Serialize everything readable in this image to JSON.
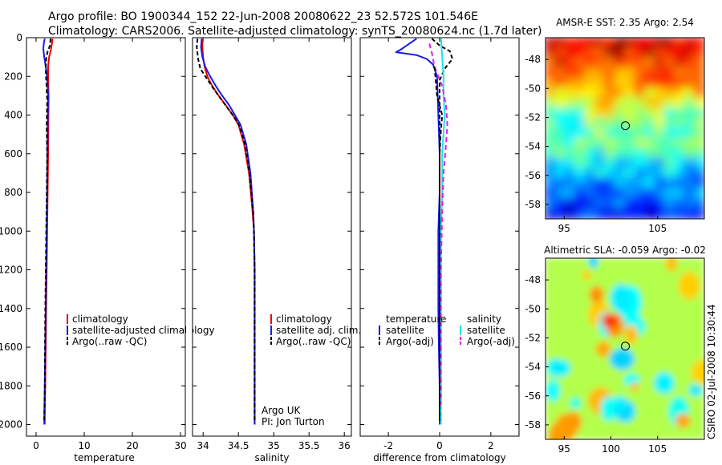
{
  "header": {
    "line1": "Argo profile: BO 1900344_152 22-Jun-2008 20080622_23 52.572S 101.546E",
    "line2": "Climatology: CARS2006. Satellite-adjusted climatology: synTS_20080624.nc (1.7d later)"
  },
  "side_text": "CSIRO 02-Jul-2008 10:30:44",
  "colors": {
    "red": "#ee0000",
    "blue": "#1a1ae6",
    "black": "#000000",
    "cyan": "#19e6e6",
    "magenta": "#e619e6"
  },
  "chart_data": [
    {
      "type": "line",
      "panel": "temperature",
      "xlabel": "temperature",
      "xlim": [
        -2,
        31
      ],
      "ylim": [
        2060,
        0
      ],
      "xticks": [
        0,
        10,
        20,
        30
      ],
      "yticks": [
        0,
        200,
        400,
        600,
        800,
        1000,
        1200,
        1400,
        1600,
        1800,
        2000
      ],
      "legend": {
        "placement": "lower-middle",
        "entries": [
          "climatology",
          "satellite-adjusted climatology",
          "Argo(..raw -QC)"
        ]
      },
      "series": [
        {
          "name": "climatology",
          "color": "red",
          "dash": "",
          "x": [
            3.4,
            3.3,
            3.1,
            2.7,
            2.5,
            2.5,
            2.6,
            2.55,
            2.5,
            2.4,
            2.3,
            2.2,
            2.1,
            2.0,
            1.9,
            1.8,
            1.8
          ],
          "y": [
            5,
            30,
            60,
            100,
            150,
            200,
            300,
            450,
            600,
            800,
            1000,
            1200,
            1400,
            1600,
            1800,
            1950,
            2000
          ]
        },
        {
          "name": "satellite-adjusted climatology",
          "color": "blue",
          "dash": "",
          "x": [
            1.8,
            1.6,
            1.5,
            1.7,
            2.0,
            2.3,
            2.5,
            2.4,
            2.35,
            2.3,
            2.2,
            2.1,
            2.0,
            1.9,
            1.8,
            1.7,
            1.7
          ],
          "y": [
            5,
            30,
            60,
            100,
            150,
            200,
            300,
            450,
            600,
            800,
            1000,
            1200,
            1400,
            1600,
            1800,
            1950,
            2000
          ]
        },
        {
          "name": "Argo(..raw -QC)",
          "color": "black",
          "dash": "5,3",
          "x": [
            3.0,
            2.9,
            2.4,
            2.1,
            2.0,
            2.1,
            2.3,
            2.2,
            2.3,
            2.2,
            2.1,
            2.0,
            1.9,
            1.85,
            1.8,
            1.7
          ],
          "y": [
            5,
            40,
            70,
            110,
            160,
            220,
            320,
            460,
            620,
            820,
            1020,
            1220,
            1420,
            1620,
            1820,
            1980
          ]
        }
      ]
    },
    {
      "type": "line",
      "panel": "salinity",
      "xlabel": "salinity",
      "xlim": [
        33.85,
        36.1
      ],
      "ylim": [
        2060,
        0
      ],
      "xticks": [
        34,
        34.5,
        35,
        35.5,
        36
      ],
      "xtick_labels": [
        "34",
        "34.5",
        "35",
        "35.5",
        "36"
      ],
      "legend": {
        "placement": "lower-middle",
        "entries": [
          "climatology",
          "satellite adj. clim.",
          "Argo(..raw -QC)"
        ]
      },
      "annotations": [
        "Argo UK",
        "PI: Jon Turton"
      ],
      "series": [
        {
          "name": "climatology",
          "color": "red",
          "dash": "",
          "x": [
            33.99,
            33.99,
            34.0,
            34.02,
            34.06,
            34.13,
            34.22,
            34.32,
            34.42,
            34.5,
            34.58,
            34.65,
            34.7,
            34.72,
            34.73,
            34.73,
            34.73,
            34.73
          ],
          "y": [
            5,
            50,
            100,
            150,
            200,
            250,
            300,
            350,
            400,
            450,
            550,
            700,
            900,
            1000,
            1200,
            1500,
            1800,
            2000
          ]
        },
        {
          "name": "satellite adj. clim.",
          "color": "blue",
          "dash": "",
          "x": [
            33.98,
            33.97,
            33.99,
            34.03,
            34.1,
            34.18,
            34.27,
            34.37,
            34.45,
            34.53,
            34.61,
            34.67,
            34.71,
            34.72,
            34.73,
            34.73,
            34.73,
            34.73
          ],
          "y": [
            5,
            50,
            100,
            150,
            200,
            250,
            300,
            350,
            400,
            450,
            550,
            700,
            900,
            1000,
            1200,
            1500,
            1800,
            2000
          ]
        },
        {
          "name": "Argo(..raw -QC)",
          "color": "black",
          "dash": "5,3",
          "x": [
            33.92,
            33.91,
            33.93,
            33.96,
            34.05,
            34.14,
            34.24,
            34.34,
            34.44,
            34.52,
            34.6,
            34.66,
            34.71,
            34.72,
            34.73,
            34.73,
            34.73,
            34.73
          ],
          "y": [
            5,
            50,
            110,
            160,
            210,
            260,
            310,
            360,
            410,
            460,
            560,
            710,
            910,
            1010,
            1210,
            1510,
            1810,
            1990
          ]
        }
      ]
    },
    {
      "type": "line",
      "panel": "difference",
      "xlabel": "difference from climatology",
      "xlim": [
        -3.1,
        3.1
      ],
      "ylim": [
        2060,
        0
      ],
      "xticks": [
        -2,
        0,
        2
      ],
      "legend_temperature": {
        "title": "temperature",
        "entries": [
          "satellite",
          "Argo(-adj)"
        ]
      },
      "legend_salinity": {
        "title": "salinity",
        "entries": [
          "satellite",
          "Argo(-adj)"
        ]
      },
      "series": [
        {
          "name": "temperature satellite",
          "color": "blue",
          "dash": "",
          "x": [
            -0.9,
            -1.5,
            -1.7,
            -0.9,
            -0.5,
            -0.25,
            -0.1,
            -0.05,
            0.0,
            0.0,
            -0.05,
            -0.05,
            -0.05,
            -0.03,
            0.0,
            0.0
          ],
          "y": [
            5,
            60,
            75,
            90,
            110,
            140,
            200,
            400,
            600,
            800,
            1000,
            1200,
            1400,
            1600,
            1800,
            2000
          ]
        },
        {
          "name": "temperature Argo(-adj)",
          "color": "black",
          "dash": "5,3",
          "x": [
            -0.3,
            0.0,
            0.4,
            0.5,
            0.2,
            0.0,
            0.0,
            0.0,
            0.0,
            0.0,
            0.0,
            0.0,
            0.0,
            0.0,
            0.0,
            0.0
          ],
          "y": [
            5,
            40,
            70,
            110,
            160,
            220,
            320,
            460,
            620,
            820,
            1020,
            1220,
            1420,
            1620,
            1820,
            1980
          ]
        },
        {
          "name": "salinity satellite",
          "color": "cyan",
          "dash": "",
          "x": [
            0.05,
            0.1,
            0.15,
            0.15,
            0.2,
            0.15,
            0.1,
            0.1,
            0.05,
            0.05,
            0.05,
            0.05,
            0.05
          ],
          "y": [
            5,
            100,
            200,
            300,
            400,
            500,
            600,
            800,
            1000,
            1200,
            1500,
            1800,
            2000
          ]
        },
        {
          "name": "salinity Argo(-adj)",
          "color": "magenta",
          "dash": "6,4",
          "x": [
            -0.4,
            -0.3,
            -0.2,
            0.1,
            0.25,
            0.3,
            0.25,
            0.15,
            0.1,
            0.05,
            0.05,
            0.05
          ],
          "y": [
            30,
            80,
            150,
            250,
            350,
            450,
            550,
            700,
            900,
            1200,
            1500,
            1900
          ]
        },
        {
          "name": "salinity Argo raw",
          "color": "black",
          "dash": "5,3",
          "x": [
            -0.2,
            -0.1,
            0.1,
            0.05,
            0.0,
            0.0,
            0.0,
            0.0,
            0.0
          ],
          "y": [
            150,
            300,
            400,
            480,
            600,
            800,
            1200,
            1600,
            1980
          ]
        }
      ]
    },
    {
      "type": "heatmap",
      "panel": "sst",
      "title": "AMSR-E SST: 2.35 Argo: 2.54",
      "xlim": [
        93,
        110
      ],
      "ylim": [
        -59,
        -46.5
      ],
      "xticks": [
        95,
        105
      ],
      "yticks": [
        -48,
        -50,
        -52,
        -54,
        -56,
        -58
      ],
      "marker": {
        "lon": 101.546,
        "lat": -52.572
      }
    },
    {
      "type": "heatmap",
      "panel": "sla",
      "title": "Altimetric SLA: -0.059 Argo: -0.02",
      "xlim": [
        93,
        110
      ],
      "ylim": [
        -59,
        -46.5
      ],
      "xticks": [
        95,
        100,
        105
      ],
      "yticks": [
        -48,
        -50,
        -52,
        -54,
        -56,
        -58
      ],
      "marker": {
        "lon": 101.546,
        "lat": -52.572
      }
    }
  ]
}
